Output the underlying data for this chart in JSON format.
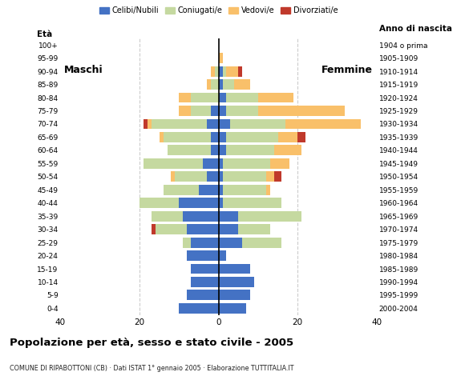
{
  "age_groups": [
    "0-4",
    "5-9",
    "10-14",
    "15-19",
    "20-24",
    "25-29",
    "30-34",
    "35-39",
    "40-44",
    "45-49",
    "50-54",
    "55-59",
    "60-64",
    "65-69",
    "70-74",
    "75-79",
    "80-84",
    "85-89",
    "90-94",
    "95-99",
    "100+"
  ],
  "birth_years": [
    "2000-2004",
    "1995-1999",
    "1990-1994",
    "1985-1989",
    "1980-1984",
    "1975-1979",
    "1970-1974",
    "1965-1969",
    "1960-1964",
    "1955-1959",
    "1950-1954",
    "1945-1949",
    "1940-1944",
    "1935-1939",
    "1930-1934",
    "1925-1929",
    "1920-1924",
    "1915-1919",
    "1910-1914",
    "1905-1909",
    "1904 o prima"
  ],
  "colors": {
    "celibi": "#4472C4",
    "coniugati": "#C5D9A0",
    "vedovi": "#F9C06A",
    "divorziati": "#C0392B"
  },
  "maschi": {
    "celibi": [
      10,
      8,
      7,
      7,
      8,
      7,
      8,
      9,
      10,
      5,
      3,
      4,
      2,
      2,
      3,
      2,
      0,
      0,
      0,
      0,
      0
    ],
    "coniugati": [
      0,
      0,
      0,
      0,
      0,
      2,
      8,
      8,
      10,
      9,
      8,
      15,
      11,
      12,
      14,
      5,
      7,
      2,
      1,
      0,
      0
    ],
    "vedovi": [
      0,
      0,
      0,
      0,
      0,
      0,
      0,
      0,
      0,
      0,
      1,
      0,
      0,
      1,
      1,
      3,
      3,
      1,
      1,
      0,
      0
    ],
    "divorziati": [
      0,
      0,
      0,
      0,
      0,
      0,
      1,
      0,
      0,
      0,
      0,
      0,
      0,
      0,
      1,
      0,
      0,
      0,
      0,
      0,
      0
    ]
  },
  "femmine": {
    "celibi": [
      7,
      8,
      9,
      8,
      2,
      6,
      5,
      5,
      1,
      1,
      1,
      1,
      2,
      2,
      3,
      2,
      2,
      1,
      1,
      0,
      0
    ],
    "coniugati": [
      0,
      0,
      0,
      0,
      0,
      10,
      8,
      16,
      15,
      11,
      11,
      12,
      12,
      13,
      14,
      8,
      8,
      3,
      1,
      0,
      0
    ],
    "vedovi": [
      0,
      0,
      0,
      0,
      0,
      0,
      0,
      0,
      0,
      1,
      2,
      5,
      7,
      5,
      19,
      22,
      9,
      4,
      3,
      1,
      0
    ],
    "divorziati": [
      0,
      0,
      0,
      0,
      0,
      0,
      0,
      0,
      0,
      0,
      2,
      0,
      0,
      2,
      0,
      0,
      0,
      0,
      1,
      0,
      0
    ]
  },
  "title": "Popolazione per età, sesso e stato civile - 2005",
  "subtitle": "COMUNE DI RIPABOTTONI (CB) · Dati ISTAT 1° gennaio 2005 · Elaborazione TUTTITALIA.IT",
  "label_eta": "Età",
  "label_anno": "Anno di nascita",
  "label_maschi": "Maschi",
  "label_femmine": "Femmine",
  "xlim": 40,
  "legend_labels": [
    "Celibi/Nubili",
    "Coniugati/e",
    "Vedovi/e",
    "Divorziati/e"
  ],
  "bg_color": "#FFFFFF",
  "grid_color": "#CCCCCC"
}
